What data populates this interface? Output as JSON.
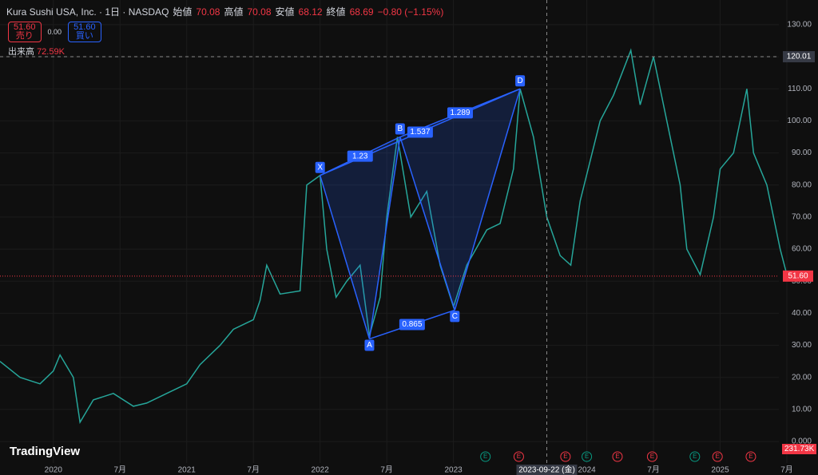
{
  "header": {
    "symbol": "Kura Sushi USA, Inc. · 1日 · NASDAQ",
    "open_label": "始値",
    "open": "70.08",
    "high_label": "高値",
    "high": "70.08",
    "low_label": "安値",
    "low": "68.12",
    "close_label": "終値",
    "close": "68.69",
    "change": "−0.80 (−1.15%)",
    "sell_price": "51.60",
    "sell_label": "売り",
    "spread": "0.00",
    "buy_price": "51.60",
    "buy_label": "買い",
    "volume_label": "出来高",
    "volume": "72.59K",
    "volume_axis_label": "231.73K",
    "logo": "TradingView"
  },
  "chart_data": {
    "type": "line",
    "color": "#26a69a",
    "x": [
      2019.6,
      2019.75,
      2019.9,
      2020.0,
      2020.05,
      2020.15,
      2020.2,
      2020.3,
      2020.45,
      2020.6,
      2020.7,
      2020.85,
      2021.0,
      2021.1,
      2021.25,
      2021.35,
      2021.5,
      2021.55,
      2021.6,
      2021.7,
      2021.85,
      2021.9,
      2022.0,
      2022.05,
      2022.12,
      2022.2,
      2022.3,
      2022.37,
      2022.45,
      2022.5,
      2022.58,
      2022.68,
      2022.8,
      2022.9,
      2023.0,
      2023.1,
      2023.25,
      2023.35,
      2023.45,
      2023.5,
      2023.6,
      2023.7,
      2023.8,
      2023.88,
      2023.95,
      2024.1,
      2024.2,
      2024.33,
      2024.4,
      2024.5,
      2024.6,
      2024.7,
      2024.75,
      2024.85,
      2024.95,
      2025.0,
      2025.1,
      2025.2,
      2025.25,
      2025.35,
      2025.45,
      2025.5
    ],
    "values": [
      25,
      20,
      18,
      22,
      27,
      20,
      6,
      13,
      15,
      11,
      12,
      15,
      18,
      24,
      30,
      35,
      38,
      44,
      55,
      46,
      47,
      80,
      83,
      60,
      45,
      50,
      55,
      33,
      45,
      70,
      95,
      70,
      78,
      55,
      42,
      55,
      66,
      68,
      85,
      110,
      95,
      70,
      58,
      55,
      75,
      100,
      108,
      122,
      105,
      120,
      100,
      80,
      60,
      52,
      70,
      85,
      90,
      110,
      90,
      80,
      60,
      52
    ],
    "xlim": [
      2019.6,
      2025.44
    ],
    "ylim": [
      -6.7,
      137.7
    ],
    "xticks": [
      {
        "value": 2020,
        "label": "2020"
      },
      {
        "value": 2020.5,
        "label": "7月"
      },
      {
        "value": 2021,
        "label": "2021"
      },
      {
        "value": 2021.5,
        "label": "7月"
      },
      {
        "value": 2022,
        "label": "2022"
      },
      {
        "value": 2022.5,
        "label": "7月"
      },
      {
        "value": 2023,
        "label": "2023"
      },
      {
        "value": 2024,
        "label": "2024"
      },
      {
        "value": 2024.5,
        "label": "7月"
      },
      {
        "value": 2025,
        "label": "2025"
      },
      {
        "value": 2025.5,
        "label": "7月"
      }
    ],
    "yticks": [
      {
        "value": 0,
        "label": "0.000"
      },
      {
        "value": 10,
        "label": "10.00"
      },
      {
        "value": 20,
        "label": "20.00"
      },
      {
        "value": 30,
        "label": "30.00"
      },
      {
        "value": 40,
        "label": "40.00"
      },
      {
        "value": 50,
        "label": "50.00"
      },
      {
        "value": 60,
        "label": "60.00"
      },
      {
        "value": 70,
        "label": "70.00"
      },
      {
        "value": 80,
        "label": "80.00"
      },
      {
        "value": 90,
        "label": "90.00"
      },
      {
        "value": 100,
        "label": "100.00"
      },
      {
        "value": 110,
        "label": "110.00"
      },
      {
        "value": 120,
        "label": "120.00"
      },
      {
        "value": 130,
        "label": "130.00"
      }
    ],
    "last_price": {
      "value": 51.6,
      "label": "51.60"
    },
    "crosshair": {
      "x": 2023.7,
      "y": 120.01,
      "date_label": "2023-09-22 (金)"
    },
    "pattern": {
      "points": [
        {
          "label": "X",
          "x": 2022.0,
          "y": 83
        },
        {
          "label": "A",
          "x": 2022.37,
          "y": 32
        },
        {
          "label": "B",
          "x": 2022.6,
          "y": 95
        },
        {
          "label": "C",
          "x": 2023.01,
          "y": 41
        },
        {
          "label": "D",
          "x": 2023.5,
          "y": 110
        }
      ],
      "ratios": [
        "1.23",
        "1.537",
        "1.289",
        "0.865"
      ]
    },
    "earnings": [
      {
        "x": 2023.24,
        "label": "E"
      },
      {
        "x": 2023.49,
        "label": "E"
      },
      {
        "x": 2023.84,
        "label": "E"
      },
      {
        "x": 2024.0,
        "label": "E"
      },
      {
        "x": 2024.23,
        "label": "E"
      },
      {
        "x": 2024.49,
        "label": "E"
      },
      {
        "x": 2024.81,
        "label": "E"
      },
      {
        "x": 2024.98,
        "label": "E"
      },
      {
        "x": 2025.23,
        "label": "E"
      }
    ]
  }
}
